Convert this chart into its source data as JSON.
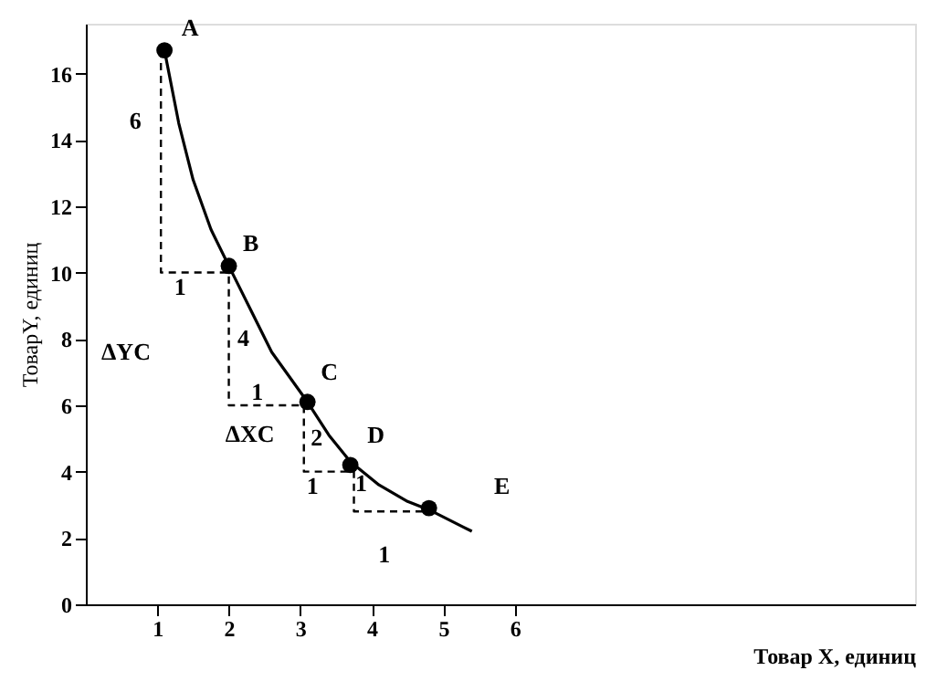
{
  "chart_data": {
    "type": "line",
    "xlabel": "Товар X, единиц",
    "ylabel": "ТоварY, единиц",
    "xlim": [
      0,
      11.6
    ],
    "ylim": [
      0,
      17.5
    ],
    "xticks": [
      1,
      2,
      3,
      4,
      5,
      6
    ],
    "yticks": [
      0,
      2,
      4,
      6,
      8,
      10,
      12,
      14,
      16
    ],
    "grid": false,
    "series": [
      {
        "type": "line",
        "color": "#000000",
        "marker": "none",
        "line_style": "solid",
        "x": [
          1.1,
          1.3,
          1.5,
          1.75,
          2.0,
          2.3,
          2.6,
          3.1,
          3.4,
          3.7,
          4.1,
          4.5,
          4.8,
          5.4
        ],
        "values": [
          16.7,
          14.5,
          12.8,
          11.3,
          10.2,
          8.9,
          7.6,
          6.1,
          5.1,
          4.3,
          3.6,
          3.1,
          2.85,
          2.2
        ]
      },
      {
        "type": "scatter",
        "color": "#000000",
        "marker": "circle",
        "x": [
          1.1,
          2.0,
          3.1,
          3.7,
          4.8
        ],
        "values": [
          16.7,
          10.2,
          6.1,
          4.2,
          2.9
        ]
      },
      {
        "type": "line",
        "color": "#000000",
        "marker": "none",
        "line_style": "dashed",
        "x": [
          1.05,
          1.05,
          2.0,
          2.0,
          3.05,
          3.05,
          3.75,
          3.75,
          4.8
        ],
        "values": [
          16.7,
          10.0,
          10.0,
          6.0,
          6.0,
          4.0,
          4.0,
          2.8,
          2.8
        ]
      }
    ],
    "annotations": [
      {
        "text": "A",
        "x": 1.1,
        "y": 16.7
      },
      {
        "text": "B",
        "x": 2.0,
        "y": 10.2
      },
      {
        "text": "C",
        "x": 3.1,
        "y": 6.1
      },
      {
        "text": "D",
        "x": 3.7,
        "y": 4.2
      },
      {
        "text": "E",
        "x": 4.8,
        "y": 2.9
      },
      {
        "text": "6",
        "x": 1.05,
        "y": 13.35
      },
      {
        "text": "1",
        "x": 1.525,
        "y": 10.0
      },
      {
        "text": "4",
        "x": 2.0,
        "y": 8.0
      },
      {
        "text": "1",
        "x": 2.525,
        "y": 6.0
      },
      {
        "text": "2",
        "x": 3.05,
        "y": 5.0
      },
      {
        "text": "1",
        "x": 3.4,
        "y": 4.0
      },
      {
        "text": "1",
        "x": 3.75,
        "y": 3.4
      },
      {
        "text": "1",
        "x": 4.275,
        "y": 2.8
      },
      "ΔYC",
      {
        "text": "ΔXC",
        "x": 2.525,
        "y": 6.0
      }
    ]
  }
}
